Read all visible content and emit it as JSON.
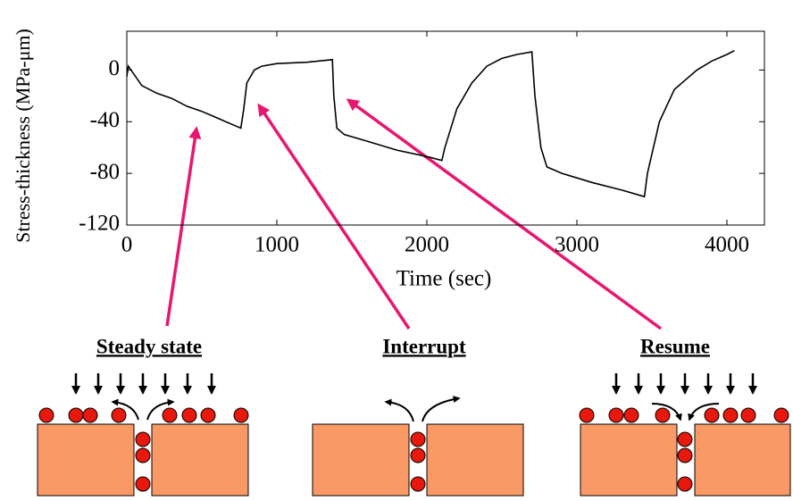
{
  "chart_data": {
    "type": "line",
    "xlabel": "Time (sec)",
    "ylabel": "Stress-thickness (MPa-μm)",
    "x": [
      0,
      10,
      100,
      200,
      300,
      400,
      500,
      600,
      700,
      760,
      780,
      800,
      850,
      900,
      1000,
      1200,
      1370,
      1380,
      1400,
      1450,
      1600,
      1800,
      2000,
      2100,
      2120,
      2200,
      2300,
      2400,
      2500,
      2600,
      2700,
      2720,
      2760,
      2800,
      2900,
      3100,
      3300,
      3450,
      3470,
      3550,
      3650,
      3800,
      3900,
      4000,
      4050
    ],
    "values": [
      -5,
      3,
      -12,
      -18,
      -22,
      -28,
      -32,
      -37,
      -42,
      -45,
      -30,
      -10,
      0,
      3,
      5,
      6,
      8,
      -20,
      -45,
      -50,
      -55,
      -62,
      -67,
      -70,
      -60,
      -30,
      -10,
      3,
      9,
      12,
      14,
      -20,
      -60,
      -75,
      -80,
      -87,
      -93,
      -98,
      -80,
      -40,
      -15,
      0,
      7,
      12,
      15
    ],
    "color": "#000000",
    "xlim": [
      0,
      4250
    ],
    "ylim": [
      -120,
      30
    ],
    "xticks": [
      0,
      1000,
      2000,
      3000,
      4000
    ],
    "yticks": [
      0,
      -40,
      -80,
      -120
    ]
  },
  "panels": [
    {
      "label": "Steady state"
    },
    {
      "label": "Interrupt"
    },
    {
      "label": "Resume"
    }
  ]
}
